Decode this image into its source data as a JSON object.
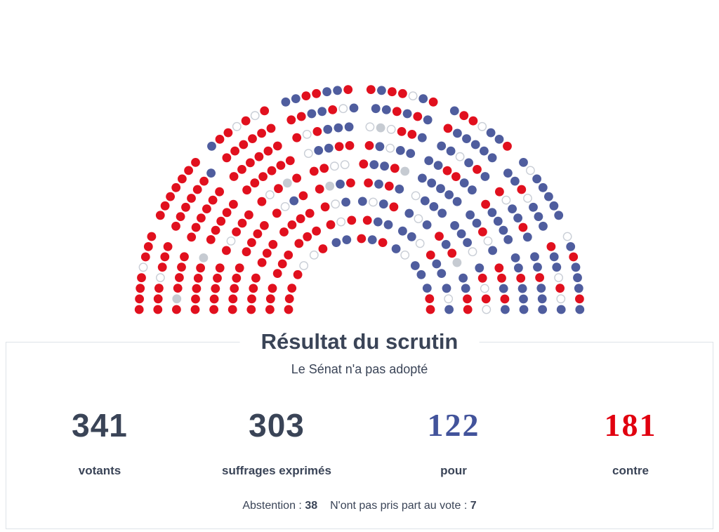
{
  "chart_data": {
    "type": "parliament",
    "title": "Résultat du scrutin",
    "subtitle": "Le Sénat n'a pas adopté",
    "total_seats": 348,
    "seat_rows": [
      19,
      24,
      29,
      34,
      39,
      44,
      48,
      53,
      58
    ],
    "categories": {
      "pour": {
        "label": "pour",
        "count": 122,
        "fill": "#4f5d9e",
        "stroke": "none"
      },
      "contre": {
        "label": "contre",
        "count": 181,
        "fill": "#e1101e",
        "stroke": "none"
      },
      "abstention": {
        "label": "abstention",
        "count": 38,
        "fill": "#ffffff",
        "stroke": "#c9ced6"
      },
      "nppv": {
        "label": "n'ont pas pris part au vote",
        "count": 7,
        "fill": "#c6cbd2",
        "stroke": "none"
      }
    },
    "seat_runs": [
      [
        "contre",
        12
      ],
      [
        "abstention",
        1
      ],
      [
        "contre",
        10
      ],
      [
        "nppv",
        1
      ],
      [
        "contre",
        13
      ],
      [
        "abstention",
        1
      ],
      [
        "contre",
        12
      ],
      [
        "nppv",
        1
      ],
      [
        "contre",
        10
      ],
      [
        "abstention",
        1
      ],
      [
        "contre",
        8
      ],
      [
        "abstention",
        1
      ],
      [
        "contre",
        9
      ],
      [
        "contre",
        9
      ],
      [
        "pour",
        2
      ],
      [
        "contre",
        8
      ],
      [
        "abstention",
        2
      ],
      [
        "contre",
        7
      ],
      [
        "nppv",
        1
      ],
      [
        "contre",
        8
      ],
      [
        "abstention",
        2
      ],
      [
        "contre",
        6
      ],
      [
        "pour",
        1
      ],
      [
        "contre",
        5
      ],
      [
        "abstention",
        2
      ],
      [
        "contre",
        6
      ],
      [
        "nppv",
        1
      ],
      [
        "pour",
        6
      ],
      [
        "contre",
        5
      ],
      [
        "abstention",
        2
      ],
      [
        "pour",
        6
      ],
      [
        "contre",
        4
      ],
      [
        "abstention",
        2
      ],
      [
        "pour",
        4
      ],
      [
        "contre",
        5
      ],
      [
        "abstention",
        3
      ],
      [
        "pour",
        5
      ],
      [
        "contre",
        4
      ],
      [
        "abstention",
        2
      ],
      [
        "pour",
        4
      ],
      [
        "contre",
        4
      ],
      [
        "nppv",
        2
      ],
      [
        "pour",
        6
      ],
      [
        "abstention",
        2
      ],
      [
        "contre",
        4
      ],
      [
        "pour",
        8
      ],
      [
        "contre",
        3
      ],
      [
        "abstention",
        2
      ],
      [
        "pour",
        9
      ],
      [
        "contre",
        2
      ],
      [
        "abstention",
        2
      ],
      [
        "pour",
        7
      ],
      [
        "contre",
        4
      ],
      [
        "abstention",
        1
      ],
      [
        "pour",
        8
      ],
      [
        "contre",
        2
      ],
      [
        "abstention",
        2
      ],
      [
        "pour",
        9
      ],
      [
        "contre",
        3
      ],
      [
        "abstention",
        1
      ],
      [
        "pour",
        7
      ],
      [
        "contre",
        2
      ],
      [
        "abstention",
        2
      ],
      [
        "pour",
        5
      ],
      [
        "nppv",
        1
      ],
      [
        "pour",
        7
      ],
      [
        "contre",
        3
      ],
      [
        "abstention",
        1
      ],
      [
        "pour",
        7
      ],
      [
        "contre",
        3
      ],
      [
        "abstention",
        2
      ],
      [
        "pour",
        6
      ],
      [
        "contre",
        3
      ],
      [
        "abstention",
        1
      ],
      [
        "pour",
        6
      ],
      [
        "contre",
        3
      ],
      [
        "abstention",
        2
      ],
      [
        "pour",
        6
      ],
      [
        "contre",
        4
      ],
      [
        "abstention",
        1
      ],
      [
        "pour",
        3
      ]
    ],
    "stats": [
      {
        "value": "341",
        "label": "votants",
        "color": "#3a4457"
      },
      {
        "value": "303",
        "label": "suffrages exprimés",
        "color": "#3a4457"
      },
      {
        "value": "122",
        "label": "pour",
        "color": "#42539b"
      },
      {
        "value": "181",
        "label": "contre",
        "color": "#e1000f"
      }
    ],
    "footer": {
      "abstention_label": "Abstention :",
      "abstention_value": "38",
      "nppv_label": "N'ont pas pris part au vote :",
      "nppv_value": "7"
    }
  }
}
